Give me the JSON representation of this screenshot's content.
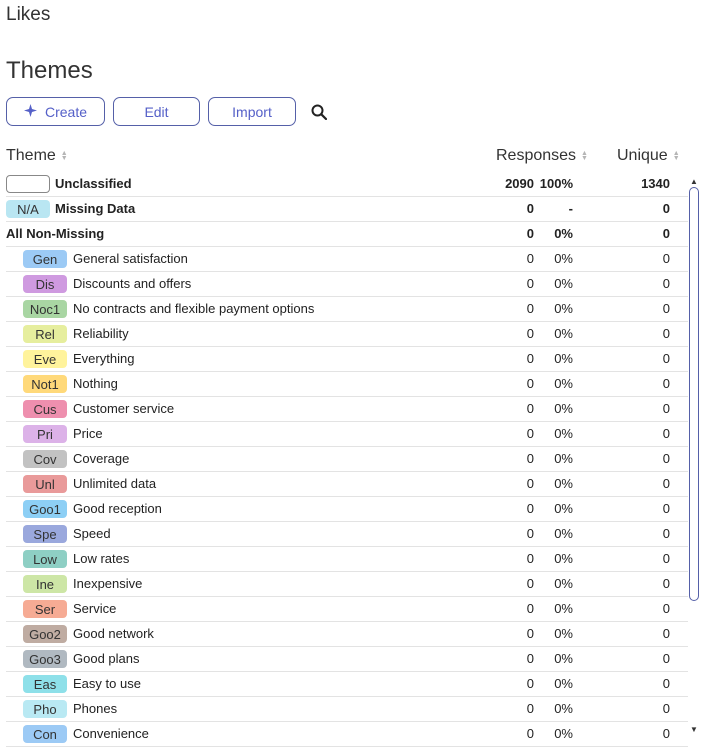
{
  "page": {
    "section_title": "Likes",
    "heading": "Themes"
  },
  "toolbar": {
    "create_label": "Create",
    "edit_label": "Edit",
    "import_label": "Import",
    "search_icon": "search-icon"
  },
  "columns": {
    "theme": "Theme",
    "responses": "Responses",
    "unique": "Unique"
  },
  "special_rows": [
    {
      "tag": "",
      "label": "Unclassified",
      "responses": "2090",
      "pct": "100%",
      "unique": "1340"
    },
    {
      "tag": "N/A",
      "label": "Missing Data",
      "responses": "0",
      "pct": "-",
      "unique": "0",
      "color": "#b9e6f2"
    },
    {
      "label": "All Non-Missing",
      "responses": "0",
      "pct": "0%",
      "unique": "0"
    }
  ],
  "themes": [
    {
      "tag": "Gen",
      "label": "General satisfaction",
      "color": "#9ccaf5",
      "responses": "0",
      "pct": "0%",
      "unique": "0"
    },
    {
      "tag": "Dis",
      "label": "Discounts and offers",
      "color": "#cf9ae0",
      "responses": "0",
      "pct": "0%",
      "unique": "0"
    },
    {
      "tag": "Noc1",
      "label": "No contracts and flexible payment options",
      "color": "#a9d6a3",
      "responses": "0",
      "pct": "0%",
      "unique": "0"
    },
    {
      "tag": "Rel",
      "label": "Reliability",
      "color": "#e6ee9e",
      "responses": "0",
      "pct": "0%",
      "unique": "0"
    },
    {
      "tag": "Eve",
      "label": "Everything",
      "color": "#fff39c",
      "responses": "0",
      "pct": "0%",
      "unique": "0"
    },
    {
      "tag": "Not1",
      "label": "Nothing",
      "color": "#ffd97a",
      "responses": "0",
      "pct": "0%",
      "unique": "0"
    },
    {
      "tag": "Cus",
      "label": "Customer service",
      "color": "#ee8fae",
      "responses": "0",
      "pct": "0%",
      "unique": "0"
    },
    {
      "tag": "Pri",
      "label": "Price",
      "color": "#dcb2e8",
      "responses": "0",
      "pct": "0%",
      "unique": "0"
    },
    {
      "tag": "Cov",
      "label": "Coverage",
      "color": "#c2c2c2",
      "responses": "0",
      "pct": "0%",
      "unique": "0"
    },
    {
      "tag": "Unl",
      "label": "Unlimited data",
      "color": "#e99a9a",
      "responses": "0",
      "pct": "0%",
      "unique": "0"
    },
    {
      "tag": "Goo1",
      "label": "Good reception",
      "color": "#8dcff5",
      "responses": "0",
      "pct": "0%",
      "unique": "0"
    },
    {
      "tag": "Spe",
      "label": "Speed",
      "color": "#9aa8dd",
      "responses": "0",
      "pct": "0%",
      "unique": "0"
    },
    {
      "tag": "Low",
      "label": "Low rates",
      "color": "#8ecfc4",
      "responses": "0",
      "pct": "0%",
      "unique": "0"
    },
    {
      "tag": "Ine",
      "label": "Inexpensive",
      "color": "#cde6a6",
      "responses": "0",
      "pct": "0%",
      "unique": "0"
    },
    {
      "tag": "Ser",
      "label": "Service",
      "color": "#f6ab94",
      "responses": "0",
      "pct": "0%",
      "unique": "0"
    },
    {
      "tag": "Goo2",
      "label": "Good network",
      "color": "#bfaca2",
      "responses": "0",
      "pct": "0%",
      "unique": "0"
    },
    {
      "tag": "Goo3",
      "label": "Good plans",
      "color": "#b0b9c1",
      "responses": "0",
      "pct": "0%",
      "unique": "0"
    },
    {
      "tag": "Eas",
      "label": "Easy to use",
      "color": "#8ee0e9",
      "responses": "0",
      "pct": "0%",
      "unique": "0"
    },
    {
      "tag": "Pho",
      "label": "Phones",
      "color": "#b9e9f3",
      "responses": "0",
      "pct": "0%",
      "unique": "0"
    },
    {
      "tag": "Con",
      "label": "Convenience",
      "color": "#9ccaf5",
      "responses": "0",
      "pct": "0%",
      "unique": "0"
    }
  ],
  "colors": {
    "accent": "#5560c8",
    "border": "#5560a8"
  }
}
